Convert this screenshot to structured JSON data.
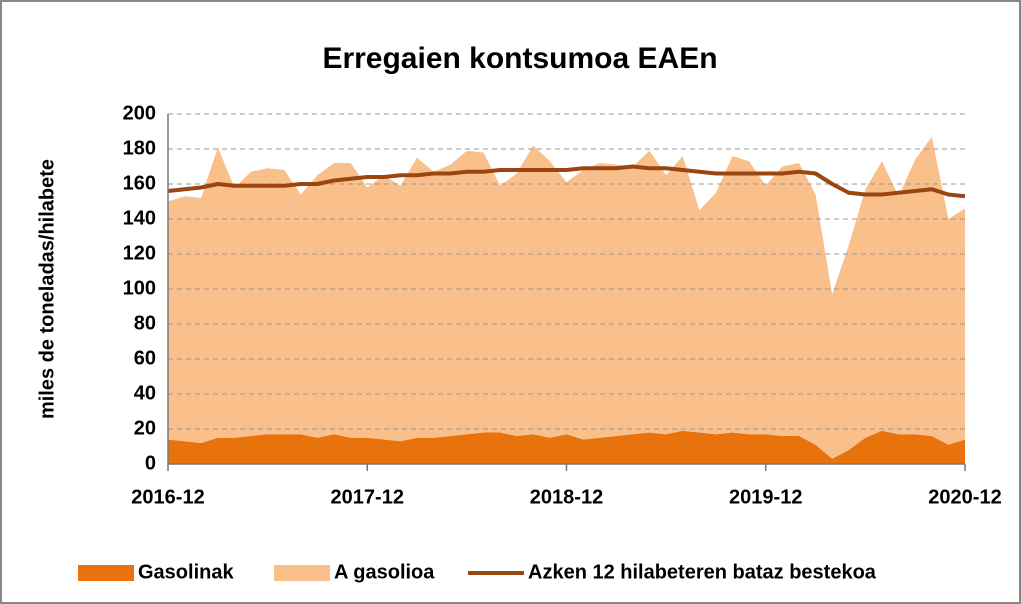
{
  "chart_data": {
    "type": "stacked-area-line",
    "title": "Erregaien kontsumoa EAEn",
    "y_label": "miles de toneladas/hilabete",
    "categories": [
      "2016-12",
      null,
      null,
      null,
      null,
      null,
      null,
      null,
      null,
      null,
      null,
      null,
      "2017-12",
      null,
      null,
      null,
      null,
      null,
      null,
      null,
      null,
      null,
      null,
      null,
      "2018-12",
      null,
      null,
      null,
      null,
      null,
      null,
      null,
      null,
      null,
      null,
      null,
      "2019-12",
      null,
      null,
      null,
      null,
      null,
      null,
      null,
      null,
      null,
      null,
      null,
      "2020-12"
    ],
    "series": [
      {
        "name": "Gasolinak",
        "kind": "area",
        "color": "#e8720c",
        "values": [
          14,
          13,
          12,
          15,
          15,
          16,
          17,
          17,
          17,
          15,
          17,
          15,
          15,
          14,
          13,
          15,
          15,
          16,
          17,
          18,
          18,
          16,
          17,
          15,
          17,
          14,
          15,
          16,
          17,
          18,
          17,
          19,
          18,
          17,
          18,
          17,
          17,
          16,
          16,
          11,
          3,
          8,
          15,
          19,
          17,
          17,
          16,
          11,
          14
        ]
      },
      {
        "name": "A gasolioa",
        "kind": "area",
        "color": "#f9c08c",
        "values": [
          136,
          140,
          140,
          166,
          143,
          151,
          152,
          151,
          137,
          150,
          155,
          157,
          143,
          151,
          146,
          160,
          152,
          155,
          162,
          160,
          141,
          150,
          165,
          158,
          144,
          154,
          157,
          155,
          153,
          161,
          148,
          157,
          127,
          138,
          158,
          156,
          142,
          154,
          156,
          143,
          94,
          117,
          142,
          154,
          136,
          157,
          171,
          129,
          132
        ]
      },
      {
        "name": "Azken 12 hilabeteren bataz bestekoa",
        "kind": "line",
        "color": "#9b4510",
        "values": [
          156,
          157,
          158,
          160,
          159,
          159,
          159,
          159,
          160,
          160,
          162,
          163,
          164,
          164,
          165,
          165,
          166,
          166,
          167,
          167,
          168,
          168,
          168,
          168,
          168,
          169,
          169,
          169,
          170,
          169,
          169,
          168,
          167,
          166,
          166,
          166,
          166,
          166,
          167,
          166,
          160,
          155,
          154,
          154,
          155,
          156,
          157,
          154,
          153
        ]
      }
    ],
    "ylim": [
      0,
      200
    ],
    "yticks": [
      0,
      20,
      40,
      60,
      80,
      100,
      120,
      140,
      160,
      180,
      200
    ],
    "grid": true
  }
}
